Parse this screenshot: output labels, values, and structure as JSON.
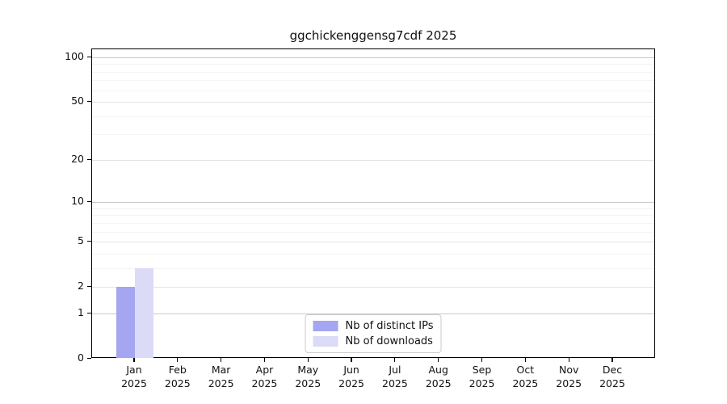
{
  "chart_data": {
    "type": "bar",
    "title": "ggchickenggensg7cdf 2025",
    "categories": [
      "Jan 2025",
      "Feb 2025",
      "Mar 2025",
      "Apr 2025",
      "May 2025",
      "Jun 2025",
      "Jul 2025",
      "Aug 2025",
      "Sep 2025",
      "Oct 2025",
      "Nov 2025",
      "Dec 2025"
    ],
    "series": [
      {
        "name": "Nb of distinct IPs",
        "color": "#a5a5f2",
        "values": [
          2,
          0,
          0,
          0,
          0,
          0,
          0,
          0,
          0,
          0,
          0,
          0
        ]
      },
      {
        "name": "Nb of downloads",
        "color": "#dbdbf8",
        "values": [
          3,
          0,
          0,
          0,
          0,
          0,
          0,
          0,
          0,
          0,
          0,
          0
        ]
      }
    ],
    "xlabel": "",
    "ylabel": "",
    "yscale": "log1p",
    "ylim": [
      0,
      113
    ],
    "y_major_ticks": [
      0,
      1,
      2,
      5,
      10,
      20,
      50,
      100
    ],
    "y_minor_gridlines": [
      3,
      4,
      6,
      7,
      8,
      9,
      30,
      40,
      60,
      70,
      80,
      90
    ],
    "grid": true,
    "legend_position": "lower-center-inside",
    "colors": {
      "grid_power_of_ten": "#c9c9c9",
      "grid_major": "#e4e4e4",
      "grid_minor": "#f4f4f4",
      "axis": "#000000",
      "legend_border": "#cccccc",
      "background": "#ffffff"
    }
  }
}
